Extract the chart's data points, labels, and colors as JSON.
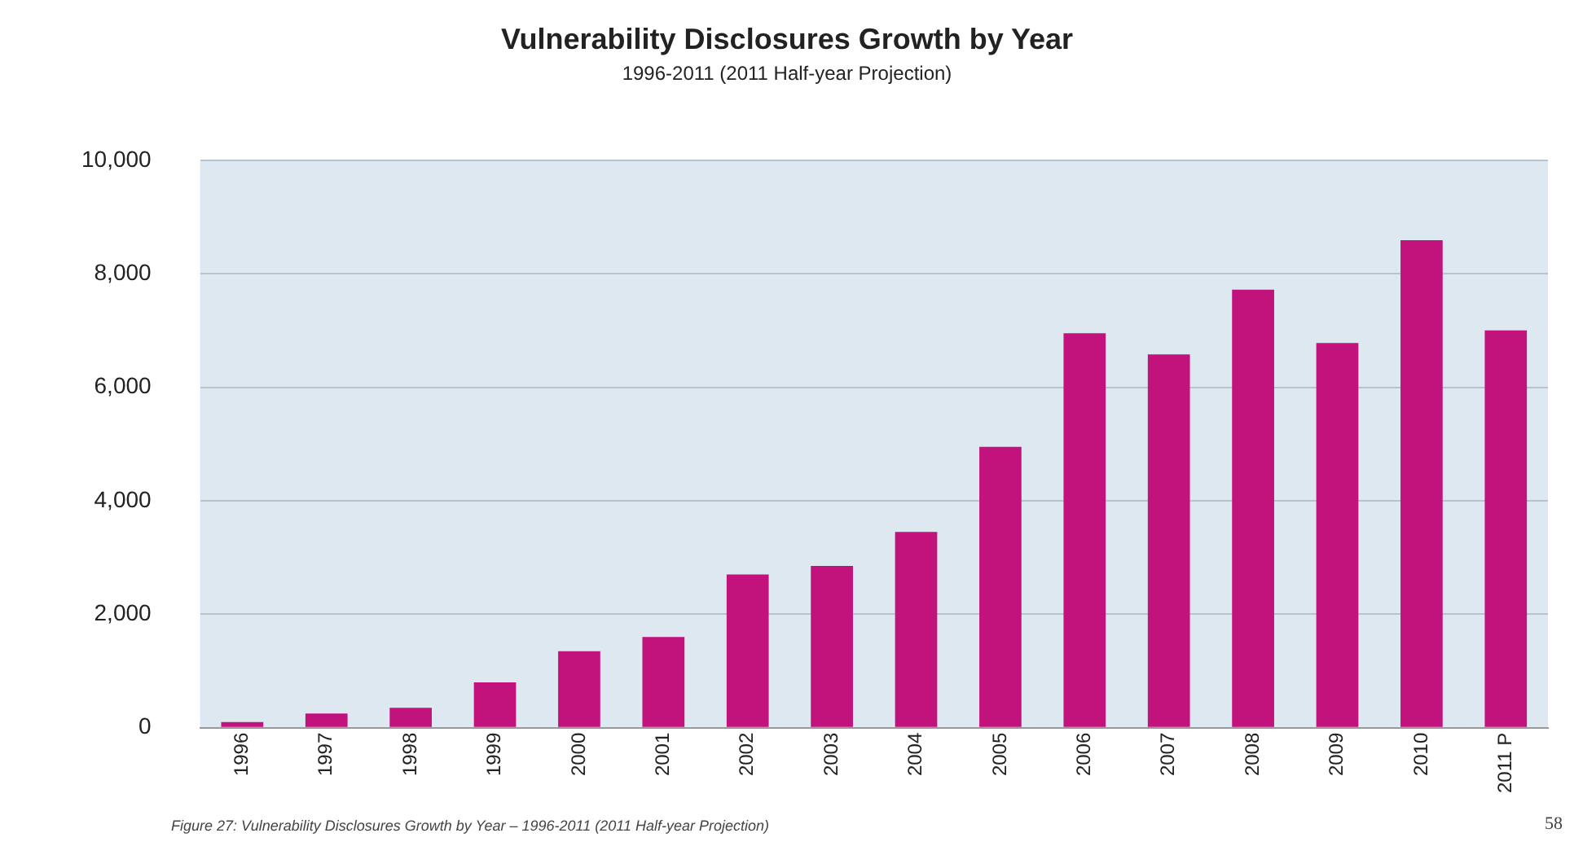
{
  "chart_data": {
    "type": "bar",
    "title": "Vulnerability Disclosures Growth by Year",
    "subtitle": "1996-2011 (2011 Half-year Projection)",
    "categories": [
      "1996",
      "1997",
      "1998",
      "1999",
      "2000",
      "2001",
      "2002",
      "2003",
      "2004",
      "2005",
      "2006",
      "2007",
      "2008",
      "2009",
      "2010",
      "2011 P"
    ],
    "values": [
      100,
      250,
      350,
      800,
      1350,
      1600,
      2700,
      2850,
      3450,
      4950,
      6950,
      6580,
      7720,
      6780,
      8590,
      7000
    ],
    "color": "#c2127c",
    "ylim": [
      0,
      10000
    ],
    "yticks": [
      {
        "value": 0,
        "label": "0"
      },
      {
        "value": 2000,
        "label": "2,000"
      },
      {
        "value": 4000,
        "label": "4,000"
      },
      {
        "value": 6000,
        "label": "6,000"
      },
      {
        "value": 8000,
        "label": "8,000"
      },
      {
        "value": 10000,
        "label": "10,000"
      }
    ],
    "grid": "y",
    "annotations": [
      "Figure 27: Vulnerability Disclosures Growth by Year – 1996-2011 (2011 Half-year Projection)",
      "58"
    ]
  }
}
